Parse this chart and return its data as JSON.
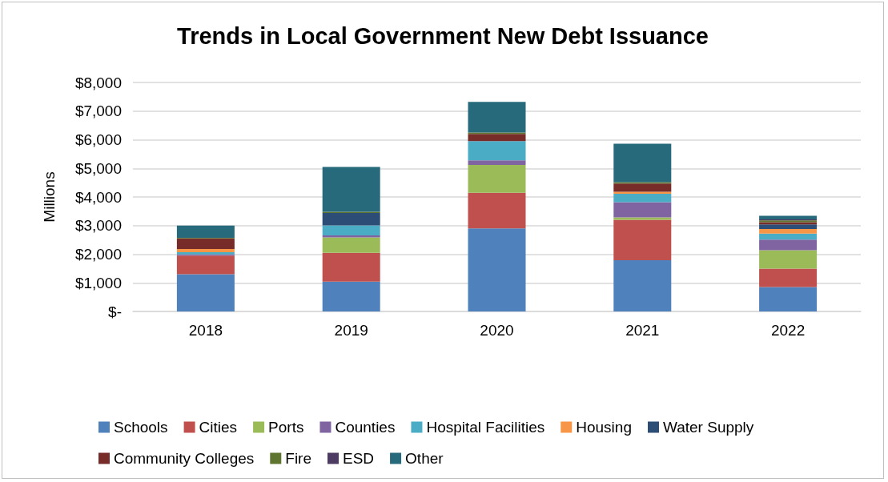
{
  "chart_data": {
    "type": "bar",
    "title": "Trends in Local Government New Debt Issuance",
    "ylabel": "Millions",
    "categories": [
      "2018",
      "2019",
      "2020",
      "2021",
      "2022"
    ],
    "stacked": true,
    "ylim": [
      0,
      8000
    ],
    "yticks": [
      {
        "value": 0,
        "label": "$-"
      },
      {
        "value": 1000,
        "label": "$1,000"
      },
      {
        "value": 2000,
        "label": "$2,000"
      },
      {
        "value": 3000,
        "label": "$3,000"
      },
      {
        "value": 4000,
        "label": "$4,000"
      },
      {
        "value": 5000,
        "label": "$5,000"
      },
      {
        "value": 6000,
        "label": "$6,000"
      },
      {
        "value": 7000,
        "label": "$7,000"
      },
      {
        "value": 8000,
        "label": "$8,000"
      }
    ],
    "grid": "y",
    "legend": "bottom",
    "series": [
      {
        "name": "Schools",
        "color": "#4f81bd",
        "values": [
          1300,
          1040,
          2900,
          1790,
          850
        ]
      },
      {
        "name": "Cities",
        "color": "#c0504d",
        "values": [
          650,
          1010,
          1250,
          1410,
          650
        ]
      },
      {
        "name": "Ports",
        "color": "#9bbb59",
        "values": [
          0,
          540,
          970,
          90,
          640
        ]
      },
      {
        "name": "Counties",
        "color": "#8064a2",
        "values": [
          40,
          70,
          160,
          530,
          370
        ]
      },
      {
        "name": "Hospital Facilities",
        "color": "#4bacc6",
        "values": [
          80,
          350,
          670,
          290,
          210
        ]
      },
      {
        "name": "Housing",
        "color": "#f79646",
        "values": [
          110,
          null,
          0,
          70,
          160
        ]
      },
      {
        "name": "Water Supply",
        "color": "#2c4d75",
        "values": [
          0,
          430,
          0,
          0,
          160
        ]
      },
      {
        "name": "Community Colleges",
        "color": "#772c2a",
        "values": [
          370,
          0,
          250,
          290,
          80
        ]
      },
      {
        "name": "Fire",
        "color": "#5f7530",
        "values": [
          20,
          40,
          50,
          50,
          60
        ]
      },
      {
        "name": "ESD",
        "color": "#4d3b62",
        "values": [
          0,
          0,
          0,
          0,
          40
        ]
      },
      {
        "name": "Other",
        "color": "#276a7c",
        "values": [
          430,
          1570,
          1070,
          1340,
          120
        ]
      }
    ]
  }
}
